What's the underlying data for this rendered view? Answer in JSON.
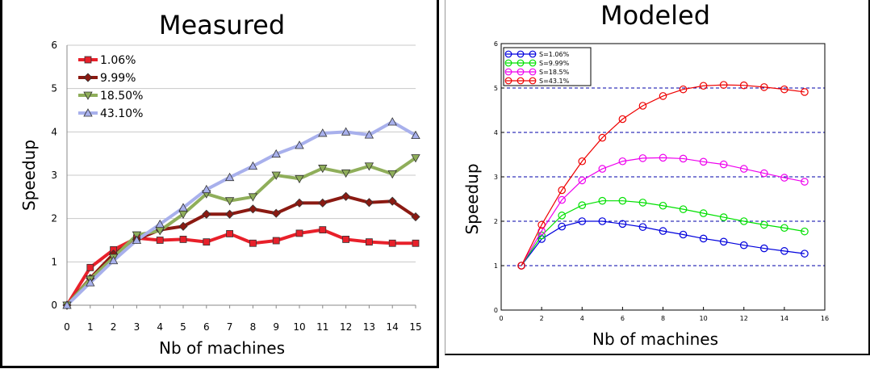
{
  "chart_data": [
    {
      "type": "line",
      "title": "Measured",
      "xlabel": "Nb of machines",
      "ylabel": "Speedup",
      "xlim": [
        0,
        15
      ],
      "ylim": [
        0,
        6
      ],
      "x_ticks": [
        "0",
        "1",
        "2",
        "3",
        "4",
        "5",
        "6",
        "7",
        "8",
        "9",
        "10",
        "11",
        "12",
        "13",
        "14",
        "15"
      ],
      "y_ticks": [
        "0",
        "1",
        "2",
        "3",
        "4",
        "5",
        "6"
      ],
      "grid": "horizontal",
      "legend_position": "top-left",
      "x": [
        0,
        1,
        2,
        3,
        4,
        5,
        6,
        7,
        8,
        9,
        10,
        11,
        12,
        13,
        14,
        15
      ],
      "series": [
        {
          "name": "1.06%",
          "color": "#e8202a",
          "marker": "square",
          "values": [
            0,
            0.87,
            1.28,
            1.55,
            1.5,
            1.52,
            1.46,
            1.65,
            1.43,
            1.49,
            1.66,
            1.74,
            1.52,
            1.46,
            1.43,
            1.43
          ]
        },
        {
          "name": "9.99%",
          "color": "#8b1a12",
          "marker": "diamond",
          "values": [
            0,
            0.62,
            1.18,
            1.52,
            1.74,
            1.82,
            2.1,
            2.1,
            2.22,
            2.12,
            2.36,
            2.36,
            2.51,
            2.37,
            2.4,
            2.04
          ]
        },
        {
          "name": "18.50%",
          "color": "#8fae5a",
          "marker": "triangle-down",
          "values": [
            0,
            0.6,
            1.1,
            1.62,
            1.72,
            2.1,
            2.57,
            2.41,
            2.5,
            3.0,
            2.92,
            3.16,
            3.05,
            3.21,
            3.03,
            3.4
          ]
        },
        {
          "name": "43.10%",
          "color": "#a8b0ec",
          "marker": "triangle-up",
          "values": [
            0,
            0.52,
            1.03,
            1.5,
            1.87,
            2.25,
            2.67,
            2.95,
            3.21,
            3.49,
            3.69,
            3.97,
            4.0,
            3.93,
            4.23,
            3.92
          ]
        }
      ]
    },
    {
      "type": "line",
      "title": "Modeled",
      "xlabel": "Nb of machines",
      "ylabel": "Speedup",
      "xlim": [
        0,
        16
      ],
      "ylim": [
        0,
        6
      ],
      "x_ticks": [
        "0",
        "2",
        "4",
        "6",
        "8",
        "10",
        "12",
        "14",
        "16"
      ],
      "y_ticks": [
        "0",
        "1",
        "2",
        "3",
        "4",
        "5",
        "6"
      ],
      "grid": "horizontal dashed",
      "legend_position": "top-left",
      "x": [
        1,
        2,
        3,
        4,
        5,
        6,
        7,
        8,
        9,
        10,
        11,
        12,
        13,
        14,
        15
      ],
      "series": [
        {
          "name": "S=1.06%",
          "color": "#0000dd",
          "marker": "circle",
          "values": [
            1.0,
            1.6,
            1.88,
            2.0,
            2.0,
            1.94,
            1.87,
            1.78,
            1.7,
            1.61,
            1.54,
            1.46,
            1.39,
            1.33,
            1.27
          ]
        },
        {
          "name": "S=9.99%",
          "color": "#00e000",
          "marker": "circle",
          "values": [
            1.0,
            1.68,
            2.13,
            2.36,
            2.46,
            2.46,
            2.42,
            2.35,
            2.27,
            2.18,
            2.09,
            2.0,
            1.92,
            1.85,
            1.77
          ]
        },
        {
          "name": "S=18.5%",
          "color": "#ee00ee",
          "marker": "circle",
          "values": [
            1.0,
            1.78,
            2.48,
            2.92,
            3.18,
            3.35,
            3.42,
            3.43,
            3.41,
            3.34,
            3.28,
            3.18,
            3.08,
            2.98,
            2.89
          ]
        },
        {
          "name": "S=43.1%",
          "color": "#ee0000",
          "marker": "circle",
          "values": [
            1.0,
            1.92,
            2.7,
            3.35,
            3.88,
            4.3,
            4.6,
            4.82,
            4.97,
            5.05,
            5.07,
            5.06,
            5.02,
            4.97,
            4.91
          ]
        }
      ]
    }
  ]
}
